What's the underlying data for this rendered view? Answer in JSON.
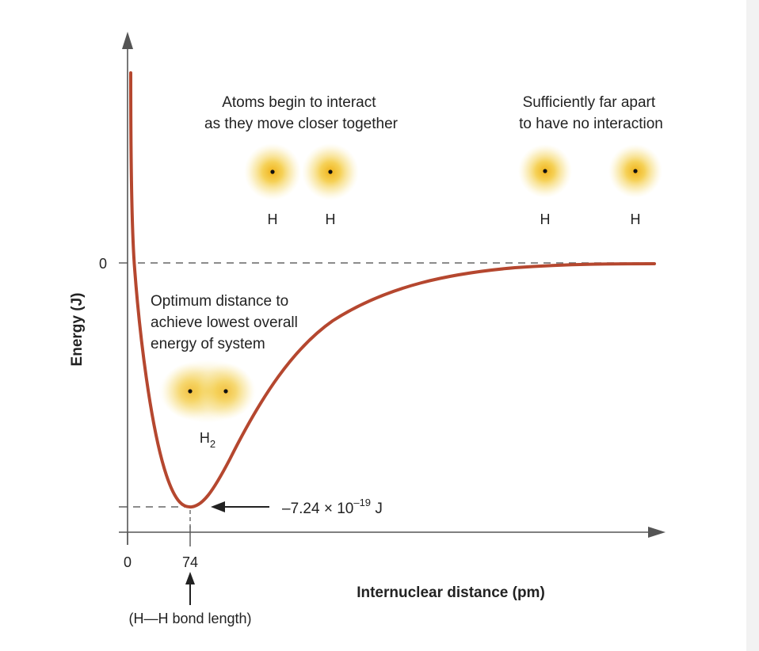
{
  "y_axis": {
    "label": "Energy (J)",
    "zero_label": "0"
  },
  "x_axis": {
    "label": "Internuclear distance (pm)",
    "origin_label": "0",
    "bond_tick_label": "74"
  },
  "bond_length_note": "(H—H bond length)",
  "minimum_energy": {
    "mantissa": "–7.24 × 10",
    "exponent": "–19",
    "unit": " J"
  },
  "annotations": {
    "interact": [
      "Atoms begin to interact",
      "as they move closer together"
    ],
    "far_apart": [
      "Sufficiently far apart",
      "to have no interaction"
    ],
    "optimum": [
      "Optimum distance to",
      "achieve lowest overall",
      "energy of system"
    ]
  },
  "atoms": {
    "interact_labels": [
      "H",
      "H"
    ],
    "far_labels": [
      "H",
      "H"
    ],
    "molecule_label": "H",
    "molecule_subscript": "2"
  },
  "colors": {
    "curve": "#b5472f",
    "axis": "#555555",
    "dashed": "#666666",
    "atom_glow": "#f2c125"
  },
  "chart_data": {
    "type": "line",
    "title": "",
    "xlabel": "Internuclear distance (pm)",
    "ylabel": "Energy (J)",
    "x_ticks": [
      0,
      74
    ],
    "y_ticks": [
      0
    ],
    "minimum": {
      "x": 74,
      "y": -7.24e-19,
      "unit": "J"
    },
    "asymptote_y": 0
  }
}
